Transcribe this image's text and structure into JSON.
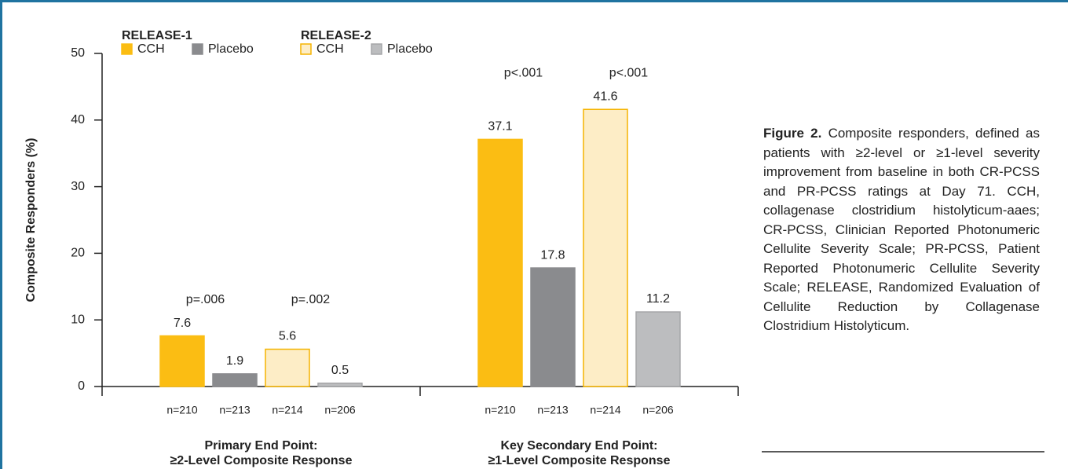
{
  "chart_data": {
    "type": "bar",
    "ylabel": "Composite Responders (%)",
    "categories": [
      [
        "Primary End Point:",
        "≥2-Level Composite Response"
      ],
      [
        "Key Secondary End Point:",
        "≥1-Level Composite Response"
      ]
    ],
    "legend_groups": [
      "RELEASE-1",
      "RELEASE-2"
    ],
    "series": [
      {
        "name": "CCH",
        "group": 0,
        "color": "#fbbd13",
        "stroke": "#fbbd13",
        "values": [
          7.6,
          37.1
        ],
        "n_labels": [
          "n=210",
          "n=210"
        ]
      },
      {
        "name": "Placebo",
        "group": 0,
        "color": "#8a8b8e",
        "stroke": "#8a8b8e",
        "values": [
          1.9,
          17.8
        ],
        "n_labels": [
          "n=213",
          "n=213"
        ]
      },
      {
        "name": "CCH",
        "group": 1,
        "color": "#fdedc6",
        "stroke": "#f5b400",
        "values": [
          5.6,
          41.6
        ],
        "n_labels": [
          "n=214",
          "n=214"
        ]
      },
      {
        "name": "Placebo",
        "group": 1,
        "color": "#bcbdbf",
        "stroke": "#a5a6a8",
        "values": [
          0.5,
          11.2
        ],
        "n_labels": [
          "n=206",
          "n=206"
        ]
      }
    ],
    "annotations": [
      [
        "p=.006",
        "p=.002"
      ],
      [
        "p<.001",
        "p<.001"
      ]
    ],
    "ylim": [
      0,
      50
    ],
    "yticks": [
      0,
      10,
      20,
      30,
      40,
      50
    ]
  },
  "caption": {
    "label": "Figure 2.",
    "text": "Composite responders, defined as patients with ≥2-level or ≥1-level severity improvement from baseline in both CR-PCSS and PR-PCSS ratings at Day 71. CCH, collagenase clostridium histolyticum-aaes; CR-PCSS, Clinician Reported Photonumeric Cellulite Severity Scale; PR-PCSS, Patient Reported Photonumeric Cellulite Severity Scale; RELEASE, Randomized Evaluation of Cellulite Reduction by Collagenase Clostridium Histolyticum."
  }
}
